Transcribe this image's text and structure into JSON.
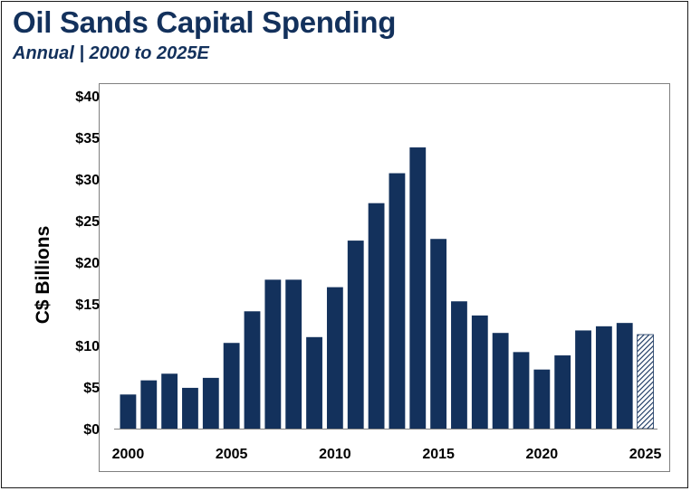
{
  "header": {
    "title": "Oil Sands Capital Spending",
    "subtitle": "Annual | 2000 to 2025E"
  },
  "colors": {
    "bar": "#13315c",
    "estimate_hatch": "#13315c",
    "title": "#13315c"
  },
  "chart_data": {
    "type": "bar",
    "title": "Oil Sands Capital Spending",
    "subtitle": "Annual | 2000 to 2025E",
    "ylabel": "C$ Billions",
    "xlabel": "",
    "ylim": [
      0,
      40
    ],
    "yticks": [
      0,
      5,
      10,
      15,
      20,
      25,
      30,
      35,
      40
    ],
    "ytick_labels": [
      "$0",
      "$5",
      "$10",
      "$15",
      "$20",
      "$25",
      "$30",
      "$35",
      "$40"
    ],
    "xticks": [
      2000,
      2005,
      2010,
      2015,
      2020,
      2025
    ],
    "xtick_labels": [
      "2000",
      "2005",
      "2010",
      "2015",
      "2020",
      "2025"
    ],
    "categories": [
      2000,
      2001,
      2002,
      2003,
      2004,
      2005,
      2006,
      2007,
      2008,
      2009,
      2010,
      2011,
      2012,
      2013,
      2014,
      2015,
      2016,
      2017,
      2018,
      2019,
      2020,
      2021,
      2022,
      2023,
      2024,
      2025
    ],
    "values": [
      4.1,
      5.8,
      6.6,
      4.9,
      6.1,
      10.3,
      14.1,
      17.9,
      17.9,
      11.0,
      17.0,
      22.6,
      27.1,
      30.7,
      33.8,
      22.8,
      15.3,
      13.6,
      11.5,
      9.2,
      7.1,
      8.8,
      11.8,
      12.3,
      12.7,
      11.3
    ],
    "estimate": [
      false,
      false,
      false,
      false,
      false,
      false,
      false,
      false,
      false,
      false,
      false,
      false,
      false,
      false,
      false,
      false,
      false,
      false,
      false,
      false,
      false,
      false,
      false,
      false,
      false,
      true
    ],
    "grid": false,
    "legend": "none"
  }
}
